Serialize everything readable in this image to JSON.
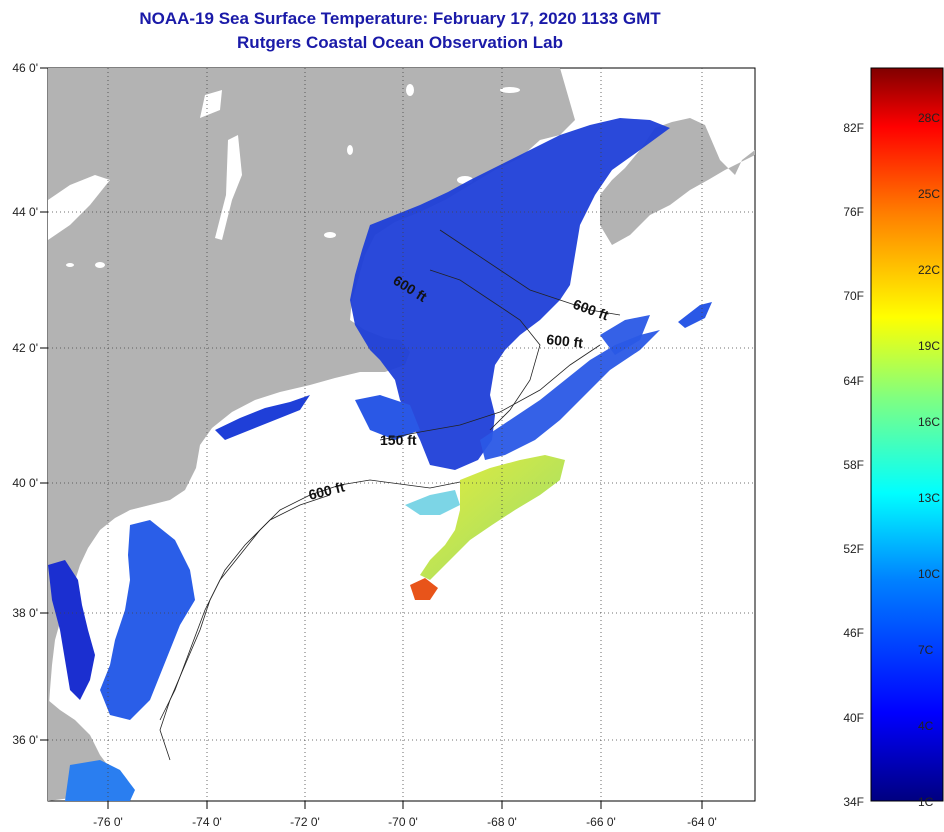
{
  "header": {
    "title": "NOAA-19 Sea Surface Temperature:  February 17, 2020 1133 GMT",
    "subtitle": "Rutgers Coastal Ocean Observation Lab"
  },
  "map": {
    "lon_ticks": [
      "-76 0'",
      "-74 0'",
      "-72 0'",
      "-70 0'",
      "-68 0'",
      "-66 0'",
      "-64 0'"
    ],
    "lat_ticks": [
      "46 0'",
      "44 0'",
      "42 0'",
      "40 0'",
      "38 0'",
      "36 0'"
    ],
    "contour_labels": [
      "600 ft",
      "600 ft",
      "600 ft",
      "150 ft",
      "600 ft"
    ],
    "colors": {
      "land": "#b3b3b3",
      "cloud": "#ffffff",
      "water_cold": "#1f3fd8",
      "water_warm": "#d8e84a",
      "hot_spot": "#e8541a"
    }
  },
  "colorbar": {
    "fahrenheit_labels": [
      "82F",
      "76F",
      "70F",
      "64F",
      "58F",
      "52F",
      "46F",
      "40F",
      "34F"
    ],
    "celsius_labels": [
      "28C",
      "25C",
      "22C",
      "19C",
      "16C",
      "13C",
      "10C",
      "7C",
      "4C",
      "1C"
    ]
  }
}
